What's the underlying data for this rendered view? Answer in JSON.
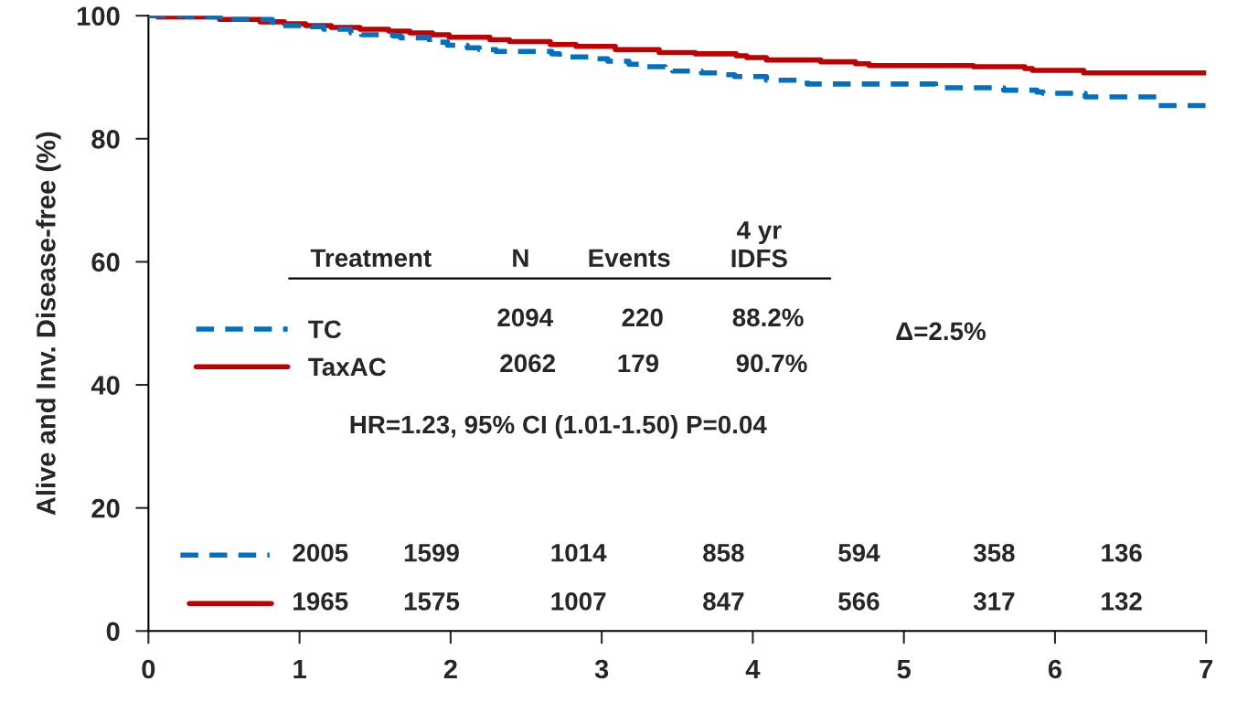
{
  "chart_data": {
    "type": "step",
    "ylabel": "Alive and Inv. Disease-free (%)",
    "xlim": [
      0,
      7
    ],
    "xticks": [
      0,
      1,
      2,
      3,
      4,
      5,
      6,
      7
    ],
    "ylim": [
      0,
      100
    ],
    "yticks": [
      0,
      20,
      40,
      60,
      80,
      100
    ],
    "grid": false,
    "legend": "left",
    "marker": "none",
    "series": [
      {
        "name": "TC",
        "color": "#0070c0",
        "line_style": "dashed",
        "x": [
          0,
          0.26,
          0.55,
          0.82,
          0.89,
          1.08,
          1.16,
          1.34,
          1.41,
          1.62,
          1.67,
          1.86,
          1.98,
          2.11,
          2.19,
          2.3,
          2.67,
          2.72,
          2.92,
          3.04,
          3.18,
          3.25,
          3.42,
          3.47,
          3.66,
          3.79,
          3.88,
          4.09,
          4.36,
          5.21,
          5.66,
          5.88,
          5.92,
          6.2,
          6.67,
          7.0
        ],
        "values": [
          100,
          99.8,
          99.4,
          98.9,
          98.4,
          98.2,
          97.8,
          97.2,
          96.9,
          96.7,
          96.4,
          95.7,
          95.2,
          94.8,
          94.5,
          94.2,
          93.8,
          93.3,
          93.0,
          92.6,
          92.1,
          91.7,
          91.5,
          91.0,
          90.7,
          90.4,
          90.1,
          89.5,
          88.9,
          88.3,
          87.9,
          87.6,
          87.4,
          86.8,
          85.4,
          85.4
        ]
      },
      {
        "name": "TaxAC",
        "color": "#c00000",
        "line_style": "solid",
        "x": [
          0,
          0.06,
          0.47,
          0.74,
          0.9,
          1.04,
          1.21,
          1.4,
          1.59,
          1.73,
          1.88,
          1.99,
          2.26,
          2.39,
          2.66,
          2.83,
          3.09,
          3.38,
          3.62,
          3.89,
          3.96,
          4.09,
          4.45,
          4.68,
          4.77,
          5.46,
          5.8,
          5.85,
          6.19,
          7.0
        ],
        "values": [
          100,
          99.8,
          99.4,
          99.0,
          98.7,
          98.4,
          98.1,
          97.8,
          97.5,
          97.2,
          96.9,
          96.5,
          96.1,
          95.8,
          95.3,
          95.0,
          94.5,
          94.0,
          93.8,
          93.5,
          93.2,
          92.8,
          92.5,
          92.2,
          91.9,
          91.7,
          91.4,
          91.1,
          90.7,
          90.7
        ]
      }
    ],
    "annotations": [
      "Treatment",
      "N",
      "Events",
      "4 yr\nIDFS",
      "2094",
      "220",
      "88.2%",
      "2062",
      "179",
      "90.7%",
      "Δ=2.5%",
      "HR=1.23, 95% CI (1.01-1.50) P=0.04",
      "2005",
      "1599",
      "1014",
      "858",
      "594",
      "358",
      "136",
      "1965",
      "1575",
      "1007",
      "847",
      "566",
      "317",
      "132"
    ]
  }
}
